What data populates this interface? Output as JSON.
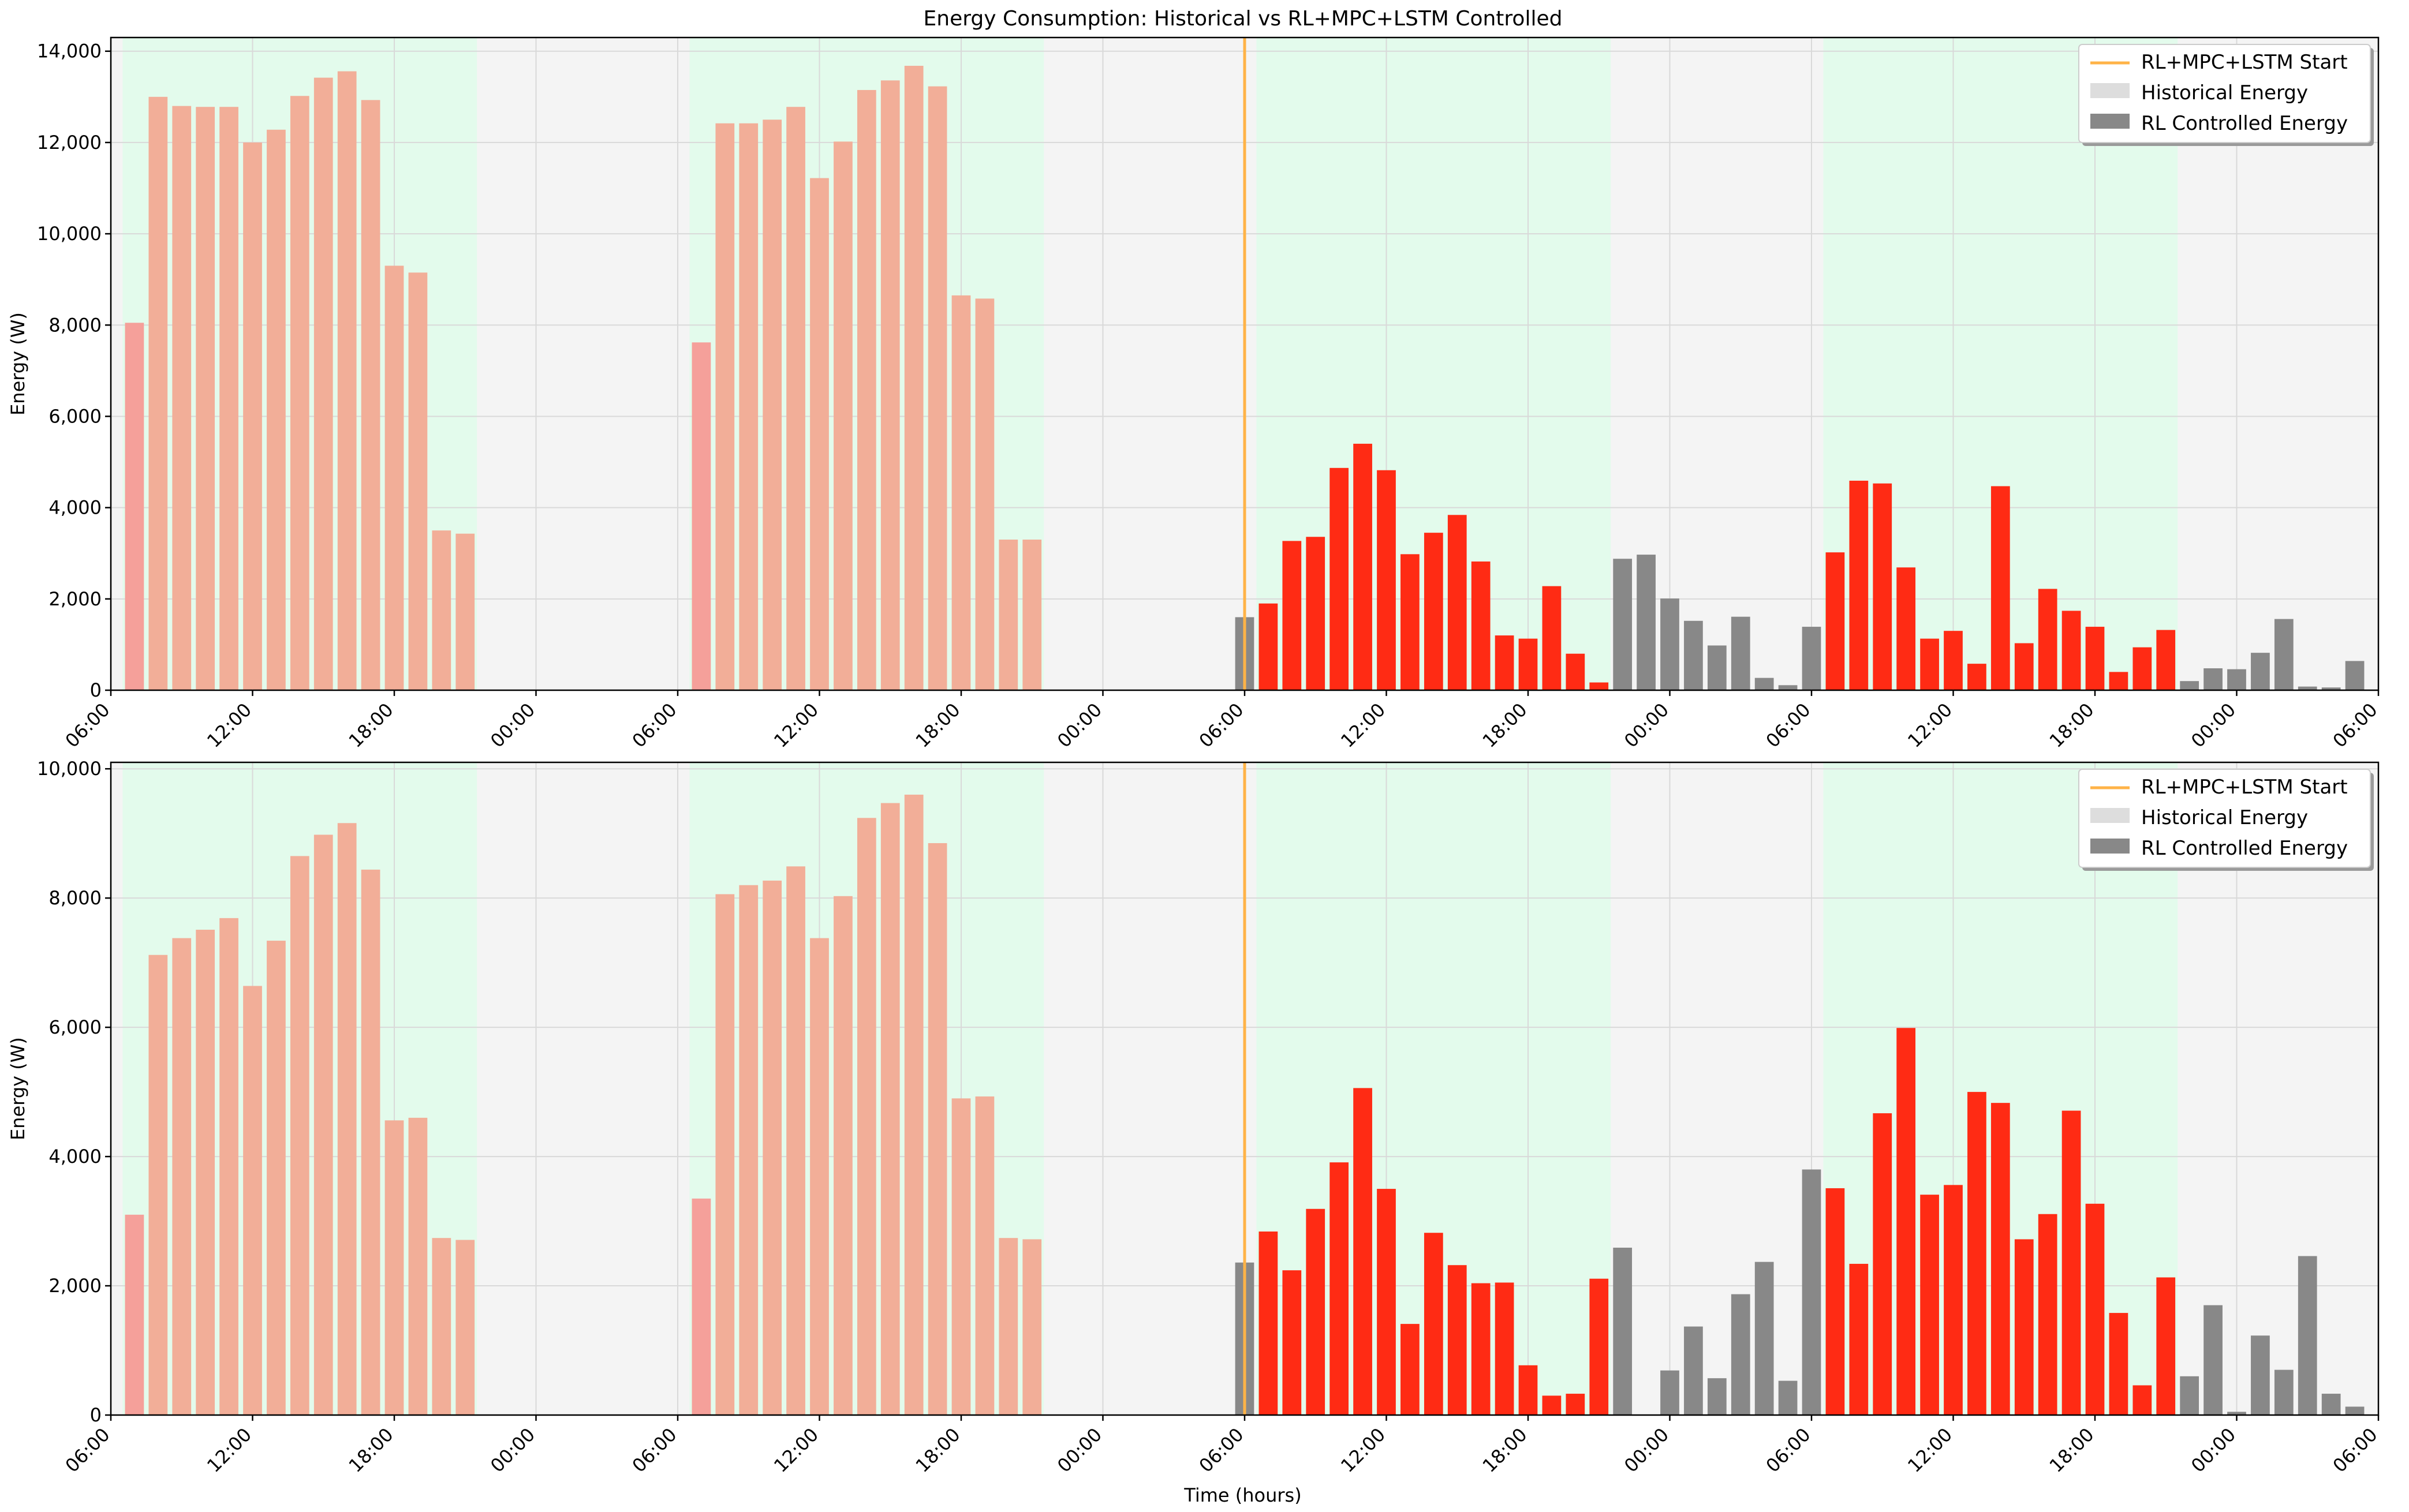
{
  "title": "Energy Consumption: Historical vs RL+MPC+LSTM Controlled",
  "xlabel": "Time (hours)",
  "x_tick_labels": [
    "06:00",
    "12:00",
    "18:00",
    "00:00",
    "06:00",
    "12:00",
    "18:00",
    "00:00",
    "06:00",
    "12:00",
    "18:00",
    "00:00",
    "06:00",
    "12:00",
    "18:00",
    "00:00",
    "06:00"
  ],
  "legend": [
    "RL+MPC+LSTM Start",
    "Historical Energy",
    "RL Controlled Energy"
  ],
  "colors": {
    "historical_bar": "#f2ae98",
    "historical_first_bar": "#f5a09a",
    "rl_bar_active": "#ff2b14",
    "rl_bar_off": "#888888",
    "start_line": "#ffb347",
    "active_band": "#e3fbec",
    "inactive_band": "#f4f4f4"
  },
  "chart_data": [
    {
      "type": "bar",
      "ylabel": "Energy (W)",
      "ylim": [
        0,
        14300
      ],
      "y_ticks": [
        0,
        2000,
        4000,
        6000,
        8000,
        10000,
        12000,
        14000
      ],
      "y_tick_labels": [
        "0",
        "2,000",
        "4,000",
        "6,000",
        "8,000",
        "10,000",
        "12,000",
        "14,000"
      ],
      "x_range_hours": [
        0,
        96
      ],
      "start_hour": 48,
      "grid": true,
      "legend_position": "upper right",
      "active_bands_hours": [
        [
          1,
          16
        ],
        [
          25,
          40
        ],
        [
          49,
          64
        ],
        [
          73,
          88
        ]
      ],
      "series": [
        {
          "name": "Historical Energy",
          "points": [
            [
              1,
              8050
            ],
            [
              2,
              13000
            ],
            [
              3,
              12800
            ],
            [
              4,
              12780
            ],
            [
              5,
              12780
            ],
            [
              6,
              12000
            ],
            [
              7,
              12280
            ],
            [
              8,
              13020
            ],
            [
              9,
              13420
            ],
            [
              10,
              13560
            ],
            [
              11,
              12930
            ],
            [
              12,
              9300
            ],
            [
              13,
              9150
            ],
            [
              14,
              3500
            ],
            [
              15,
              3430
            ],
            [
              25,
              7620
            ],
            [
              26,
              12420
            ],
            [
              27,
              12420
            ],
            [
              28,
              12500
            ],
            [
              29,
              12780
            ],
            [
              30,
              11220
            ],
            [
              31,
              12020
            ],
            [
              32,
              13150
            ],
            [
              33,
              13360
            ],
            [
              34,
              13680
            ],
            [
              35,
              13230
            ],
            [
              36,
              8650
            ],
            [
              37,
              8580
            ],
            [
              38,
              3300
            ],
            [
              39,
              3300
            ]
          ]
        },
        {
          "name": "RL Controlled Energy",
          "points": [
            [
              48,
              1600
            ],
            [
              49,
              1900
            ],
            [
              50,
              3270
            ],
            [
              51,
              3360
            ],
            [
              52,
              4870
            ],
            [
              53,
              5400
            ],
            [
              54,
              4820
            ],
            [
              55,
              2980
            ],
            [
              56,
              3450
            ],
            [
              57,
              3840
            ],
            [
              58,
              2820
            ],
            [
              59,
              1200
            ],
            [
              60,
              1130
            ],
            [
              61,
              2280
            ],
            [
              62,
              800
            ],
            [
              63,
              170
            ],
            [
              64,
              2880
            ],
            [
              65,
              2970
            ],
            [
              66,
              2010
            ],
            [
              67,
              1520
            ],
            [
              68,
              980
            ],
            [
              69,
              1610
            ],
            [
              70,
              270
            ],
            [
              71,
              110
            ],
            [
              72,
              1390
            ],
            [
              73,
              3020
            ],
            [
              74,
              4590
            ],
            [
              75,
              4530
            ],
            [
              76,
              2690
            ],
            [
              77,
              1130
            ],
            [
              78,
              1300
            ],
            [
              79,
              580
            ],
            [
              80,
              4470
            ],
            [
              81,
              1030
            ],
            [
              82,
              2220
            ],
            [
              83,
              1740
            ],
            [
              84,
              1390
            ],
            [
              85,
              400
            ],
            [
              86,
              940
            ],
            [
              87,
              1320
            ],
            [
              88,
              200
            ],
            [
              89,
              480
            ],
            [
              90,
              460
            ],
            [
              91,
              820
            ],
            [
              92,
              1560
            ],
            [
              93,
              80
            ],
            [
              94,
              60
            ],
            [
              95,
              640
            ]
          ]
        }
      ]
    },
    {
      "type": "bar",
      "ylabel": "Energy (W)",
      "ylim": [
        0,
        10100
      ],
      "y_ticks": [
        0,
        2000,
        4000,
        6000,
        8000,
        10000
      ],
      "y_tick_labels": [
        "0",
        "2,000",
        "4,000",
        "6,000",
        "8,000",
        "10,000"
      ],
      "x_range_hours": [
        0,
        96
      ],
      "start_hour": 48,
      "grid": true,
      "legend_position": "upper right",
      "active_bands_hours": [
        [
          1,
          16
        ],
        [
          25,
          40
        ],
        [
          49,
          64
        ],
        [
          73,
          88
        ]
      ],
      "series": [
        {
          "name": "Historical Energy",
          "points": [
            [
              1,
              3100
            ],
            [
              2,
              7120
            ],
            [
              3,
              7380
            ],
            [
              4,
              7510
            ],
            [
              5,
              7690
            ],
            [
              6,
              6640
            ],
            [
              7,
              7340
            ],
            [
              8,
              8650
            ],
            [
              9,
              8980
            ],
            [
              10,
              9160
            ],
            [
              11,
              8440
            ],
            [
              12,
              4560
            ],
            [
              13,
              4600
            ],
            [
              14,
              2740
            ],
            [
              15,
              2710
            ],
            [
              25,
              3350
            ],
            [
              26,
              8060
            ],
            [
              27,
              8200
            ],
            [
              28,
              8270
            ],
            [
              29,
              8490
            ],
            [
              30,
              7380
            ],
            [
              31,
              8030
            ],
            [
              32,
              9240
            ],
            [
              33,
              9470
            ],
            [
              34,
              9600
            ],
            [
              35,
              8850
            ],
            [
              36,
              4900
            ],
            [
              37,
              4930
            ],
            [
              38,
              2740
            ],
            [
              39,
              2720
            ]
          ]
        },
        {
          "name": "RL Controlled Energy",
          "points": [
            [
              48,
              2360
            ],
            [
              49,
              2840
            ],
            [
              50,
              2240
            ],
            [
              51,
              3190
            ],
            [
              52,
              3910
            ],
            [
              53,
              5060
            ],
            [
              54,
              3500
            ],
            [
              55,
              1410
            ],
            [
              56,
              2820
            ],
            [
              57,
              2320
            ],
            [
              58,
              2040
            ],
            [
              59,
              2050
            ],
            [
              60,
              770
            ],
            [
              61,
              300
            ],
            [
              62,
              330
            ],
            [
              63,
              2110
            ],
            [
              64,
              2590
            ],
            [
              66,
              690
            ],
            [
              67,
              1370
            ],
            [
              68,
              570
            ],
            [
              69,
              1870
            ],
            [
              70,
              2370
            ],
            [
              71,
              530
            ],
            [
              72,
              3800
            ],
            [
              73,
              3510
            ],
            [
              74,
              2340
            ],
            [
              75,
              4670
            ],
            [
              76,
              5990
            ],
            [
              77,
              3410
            ],
            [
              78,
              3560
            ],
            [
              79,
              5000
            ],
            [
              80,
              4830
            ],
            [
              81,
              2720
            ],
            [
              82,
              3110
            ],
            [
              83,
              4710
            ],
            [
              84,
              3270
            ],
            [
              85,
              1580
            ],
            [
              86,
              460
            ],
            [
              87,
              2130
            ],
            [
              88,
              600
            ],
            [
              89,
              1700
            ],
            [
              90,
              50
            ],
            [
              91,
              1230
            ],
            [
              92,
              700
            ],
            [
              93,
              2460
            ],
            [
              94,
              330
            ],
            [
              95,
              130
            ]
          ]
        }
      ]
    }
  ]
}
